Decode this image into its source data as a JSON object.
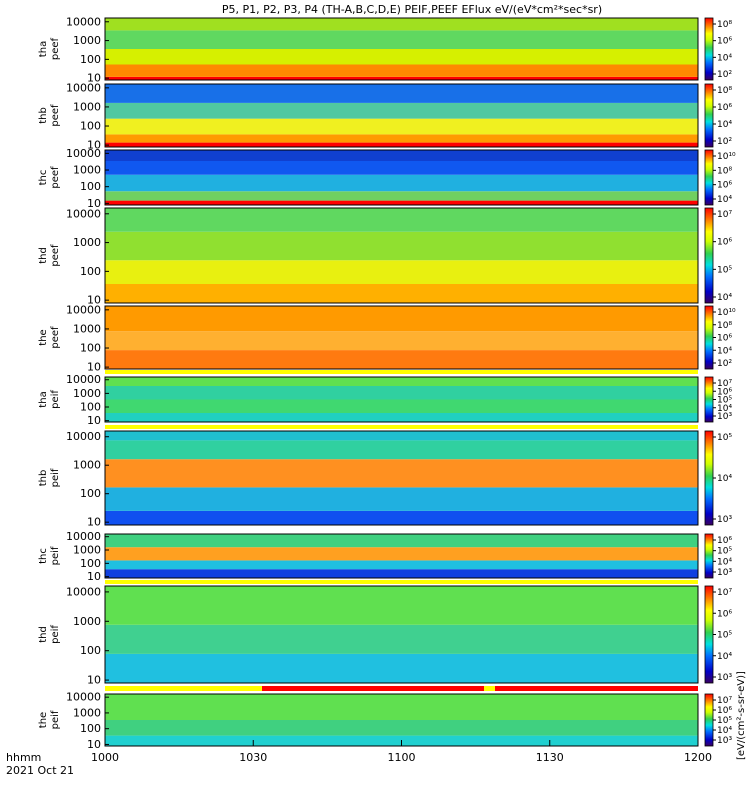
{
  "title": "P5, P1, P2, P3, P4 (TH-A,B,C,D,E) PEIF,PEEF EFlux eV/(eV*cm²*sec*sr)",
  "x_axis": {
    "label1": "hhmm",
    "label2": "2021 Oct 21",
    "ticks": [
      "1000",
      "1030",
      "1100",
      "1130",
      "1200"
    ]
  },
  "colorbar_unit": "[eV/(cm²-s-sr-eV)]",
  "colors": {
    "flag_bar": "#ff0000",
    "flag_gap": "#ffff00",
    "background": "#ffffff"
  },
  "chart_data": {
    "type": "heatmap",
    "x_range": [
      "10:00",
      "12:00"
    ],
    "y_scale": "log",
    "y_unit": "eV",
    "panels": [
      {
        "name": "tha peef",
        "label_line1": "tha",
        "label_line2": "peef",
        "yticks": [
          "10000",
          "1000",
          "100",
          "10"
        ],
        "cbticks": [
          "10⁸",
          "10⁶",
          "10⁴",
          "10²"
        ],
        "cbrange_exp": [
          2,
          9
        ]
      },
      {
        "name": "thb peef",
        "label_line1": "thb",
        "label_line2": "peef",
        "yticks": [
          "10000",
          "1000",
          "100",
          "10"
        ],
        "cbticks": [
          "10⁸",
          "10⁶",
          "10⁴",
          "10²"
        ],
        "cbrange_exp": [
          2,
          9
        ]
      },
      {
        "name": "thc peef",
        "label_line1": "thc",
        "label_line2": "peef",
        "yticks": [
          "10000",
          "1000",
          "100",
          "10"
        ],
        "cbticks": [
          "10¹⁰",
          "10⁸",
          "10⁶",
          "10⁴"
        ],
        "cbrange_exp": [
          3,
          11
        ]
      },
      {
        "name": "thd peef",
        "label_line1": "thd",
        "label_line2": "peef",
        "yticks": [
          "10000",
          "1000",
          "100",
          "10"
        ],
        "cbticks": [
          "10⁷",
          "10⁶",
          "10⁵",
          "10⁴"
        ],
        "cbrange_exp": [
          3,
          8
        ]
      },
      {
        "name": "the peef",
        "label_line1": "the",
        "label_line2": "peef",
        "yticks": [
          "10000",
          "1000",
          "100",
          "10"
        ],
        "cbticks": [
          "10¹⁰",
          "10⁸",
          "10⁶",
          "10⁴",
          "10²"
        ],
        "cbrange_exp": [
          1,
          11
        ]
      },
      {
        "name": "tha peif",
        "label_line1": "tha",
        "label_line2": "peif",
        "yticks": [
          "10000",
          "1000",
          "100",
          "10"
        ],
        "cbticks": [
          "10⁷",
          "10⁶",
          "10⁵",
          "10⁴",
          "10³"
        ],
        "cbrange_exp": [
          3,
          7.5
        ]
      },
      {
        "name": "thb peif",
        "label_line1": "thb",
        "label_line2": "peif",
        "yticks": [
          "10000",
          "1000",
          "100",
          "10"
        ],
        "cbticks": [
          "10⁵",
          "10⁴",
          "10³"
        ],
        "cbrange_exp": [
          2.5,
          6
        ]
      },
      {
        "name": "thc peif",
        "label_line1": "thc",
        "label_line2": "peif",
        "yticks": [
          "10000",
          "1000",
          "100",
          "10"
        ],
        "cbticks": [
          "10⁶",
          "10⁵",
          "10⁴",
          "10³"
        ],
        "cbrange_exp": [
          2.5,
          6.5
        ]
      },
      {
        "name": "thd peif",
        "label_line1": "thd",
        "label_line2": "peif",
        "yticks": [
          "10000",
          "1000",
          "100",
          "10"
        ],
        "cbticks": [
          "10⁷",
          "10⁶",
          "10⁵",
          "10⁴",
          "10³"
        ],
        "cbrange_exp": [
          3,
          7.5
        ]
      },
      {
        "name": "the peif",
        "label_line1": "the",
        "label_line2": "peif",
        "yticks": [
          "10000",
          "1000",
          "100",
          "10"
        ],
        "cbticks": [
          "10⁷",
          "10⁶",
          "10⁵",
          "10⁴",
          "10³"
        ],
        "cbrange_exp": [
          3,
          7.5
        ]
      }
    ]
  }
}
